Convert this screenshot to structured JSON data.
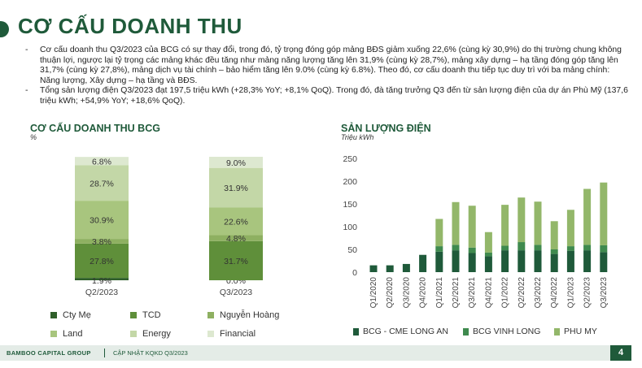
{
  "page": {
    "title": "CƠ CẤU DOANH THU",
    "bullets": [
      "Cơ cấu doanh thu Q3/2023 của BCG có sự thay đổi, trong đó, tỷ trọng đóng góp mảng BĐS giảm xuống 22,6% (cùng kỳ 30,9%) do thị trường chung không thuận lợi, ngược lại tỷ trọng các mảng khác đều tăng như mảng năng lượng tăng lên 31,9% (cùng kỳ 28,7%), mảng xây dựng – hạ tầng đóng góp tăng lên 31,7% (cùng kỳ 27,8%), mảng dịch vụ tài chính – bảo hiểm tăng lên 9.0% (cùng kỳ 6.8%). Theo đó, cơ cấu doanh thu tiếp tục duy trì với ba mảng chính: Năng lượng, Xây dựng – hạ tầng và BĐS.",
      "Tổng sản lượng điện Q3/2023 đạt 197,5 triệu kWh (+28,3% YoY; +8,1% QoQ). Trong đó, đà tăng trưởng Q3 đến từ sản lượng điện của dự án Phù Mỹ (137,6 triệu kWh; +54,9% YoY; +18,6% QoQ)."
    ],
    "footer": {
      "brand": "BAMBOO CAPITAL GROUP",
      "doc": "CẬP NHẬT KQKD Q3/2023",
      "page_number": "4"
    }
  },
  "chart_data": [
    {
      "type": "bar",
      "stacked": true,
      "title": "CƠ CẤU DOANH THU BCG",
      "ylabel": "%",
      "categories": [
        "Q2/2023",
        "Q3/2023"
      ],
      "series": [
        {
          "name": "Cty Mẹ",
          "values": [
            1.9,
            0.0
          ],
          "labels": [
            "1.9%",
            "0.0%"
          ],
          "color": "#2f5f2a"
        },
        {
          "name": "TCD",
          "values": [
            27.8,
            31.7
          ],
          "labels": [
            "27.8%",
            "31.7%"
          ],
          "color": "#5f8f3a"
        },
        {
          "name": "Nguyễn Hoàng",
          "values": [
            3.8,
            4.8
          ],
          "labels": [
            "3.8%",
            "4.8%"
          ],
          "color": "#8eb061"
        },
        {
          "name": "Land",
          "values": [
            30.9,
            22.6
          ],
          "labels": [
            "30.9%",
            "22.6%"
          ],
          "color": "#a8c57e"
        },
        {
          "name": "Energy",
          "values": [
            28.7,
            31.9
          ],
          "labels": [
            "28.7%",
            "31.9%"
          ],
          "color": "#c3d7a7"
        },
        {
          "name": "Financial",
          "values": [
            6.8,
            9.0
          ],
          "labels": [
            "6.8%",
            "9.0%"
          ],
          "color": "#dde8d0"
        }
      ],
      "legend_position": "bottom"
    },
    {
      "type": "bar",
      "stacked": true,
      "title": "SẢN LƯỢNG ĐIỆN",
      "ylabel": "Triệu kWh",
      "categories": [
        "Q1/2020",
        "Q2/2020",
        "Q3/2020",
        "Q4/2020",
        "Q1/2021",
        "Q2/2021",
        "Q3/2021",
        "Q4/2021",
        "Q1/2022",
        "Q2/2022",
        "Q3/2022",
        "Q4/2022",
        "Q1/2023",
        "Q2/2023",
        "Q3/2023"
      ],
      "yticks": [
        0,
        50,
        100,
        150,
        200,
        250
      ],
      "ylim": [
        0,
        250
      ],
      "grid": false,
      "series": [
        {
          "name": "BCG - CME LONG AN",
          "color": "#1f5a3a",
          "values": [
            15,
            15,
            18,
            38,
            45,
            48,
            42,
            35,
            48,
            48,
            48,
            40,
            47,
            48,
            44
          ]
        },
        {
          "name": "BCG VINH LONG",
          "color": "#3f8a4e",
          "values": [
            0,
            0,
            0,
            0,
            12,
            12,
            12,
            8,
            10,
            18,
            12,
            10,
            10,
            12,
            15
          ]
        },
        {
          "name": "PHU MY",
          "color": "#93b76a",
          "values": [
            0,
            0,
            0,
            0,
            60,
            94,
            92,
            45,
            90,
            98,
            95,
            62,
            80,
            123,
            138
          ]
        }
      ],
      "legend_position": "bottom"
    }
  ]
}
